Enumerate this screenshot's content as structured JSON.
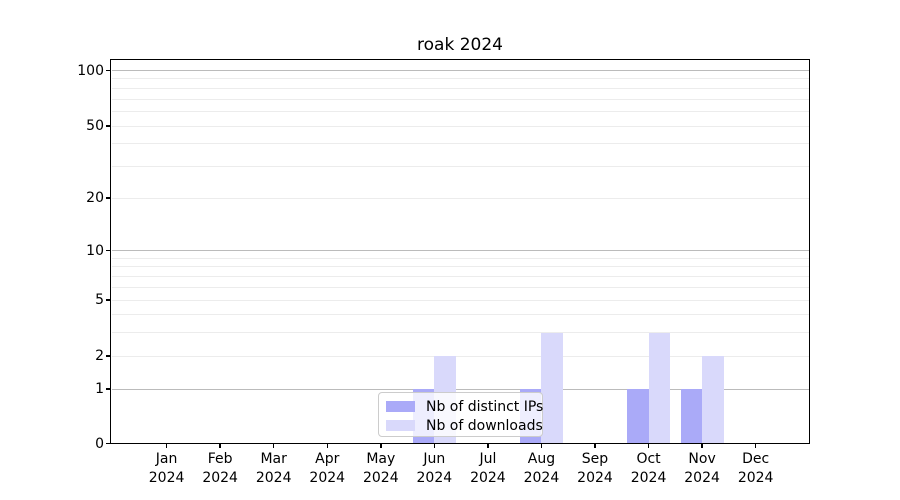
{
  "chart_data": {
    "type": "bar",
    "title": "roak 2024",
    "categories": [
      "Jan 2024",
      "Feb 2024",
      "Mar 2024",
      "Apr 2024",
      "May 2024",
      "Jun 2024",
      "Jul 2024",
      "Aug 2024",
      "Sep 2024",
      "Oct 2024",
      "Nov 2024",
      "Dec 2024"
    ],
    "series": [
      {
        "name": "Nb of distinct IPs",
        "color": "#aaaaf8",
        "values": [
          0,
          0,
          0,
          0,
          0,
          1,
          0,
          1,
          0,
          1,
          1,
          0
        ]
      },
      {
        "name": "Nb of downloads",
        "color": "#d9d9fb",
        "values": [
          0,
          0,
          0,
          0,
          0,
          2,
          0,
          3,
          0,
          3,
          2,
          0
        ]
      }
    ],
    "xlabel": "",
    "ylabel": "",
    "y_axis": {
      "scale": "log10(value+1)",
      "tick_labels": [
        0,
        1,
        2,
        5,
        10,
        20,
        50,
        100
      ],
      "minor_gridlines": [
        3,
        4,
        6,
        7,
        8,
        9,
        30,
        40,
        60,
        70,
        80,
        90
      ],
      "emphasized_gridlines": [
        1,
        10,
        100
      ],
      "ymin": 0,
      "ymax": 115
    },
    "legend": {
      "position": "lower center",
      "entries": [
        "Nb of distinct IPs",
        "Nb of downloads"
      ]
    },
    "grid": true
  },
  "colors": {
    "bar_distinct_ips": "#aaaaf8",
    "bar_downloads": "#d9d9fb",
    "grid_minor": "#ececec",
    "grid_emphasized": "#bbbbbb",
    "spine": "#000000",
    "background": "#ffffff",
    "legend_border": "#cccccc",
    "text": "#000000"
  }
}
